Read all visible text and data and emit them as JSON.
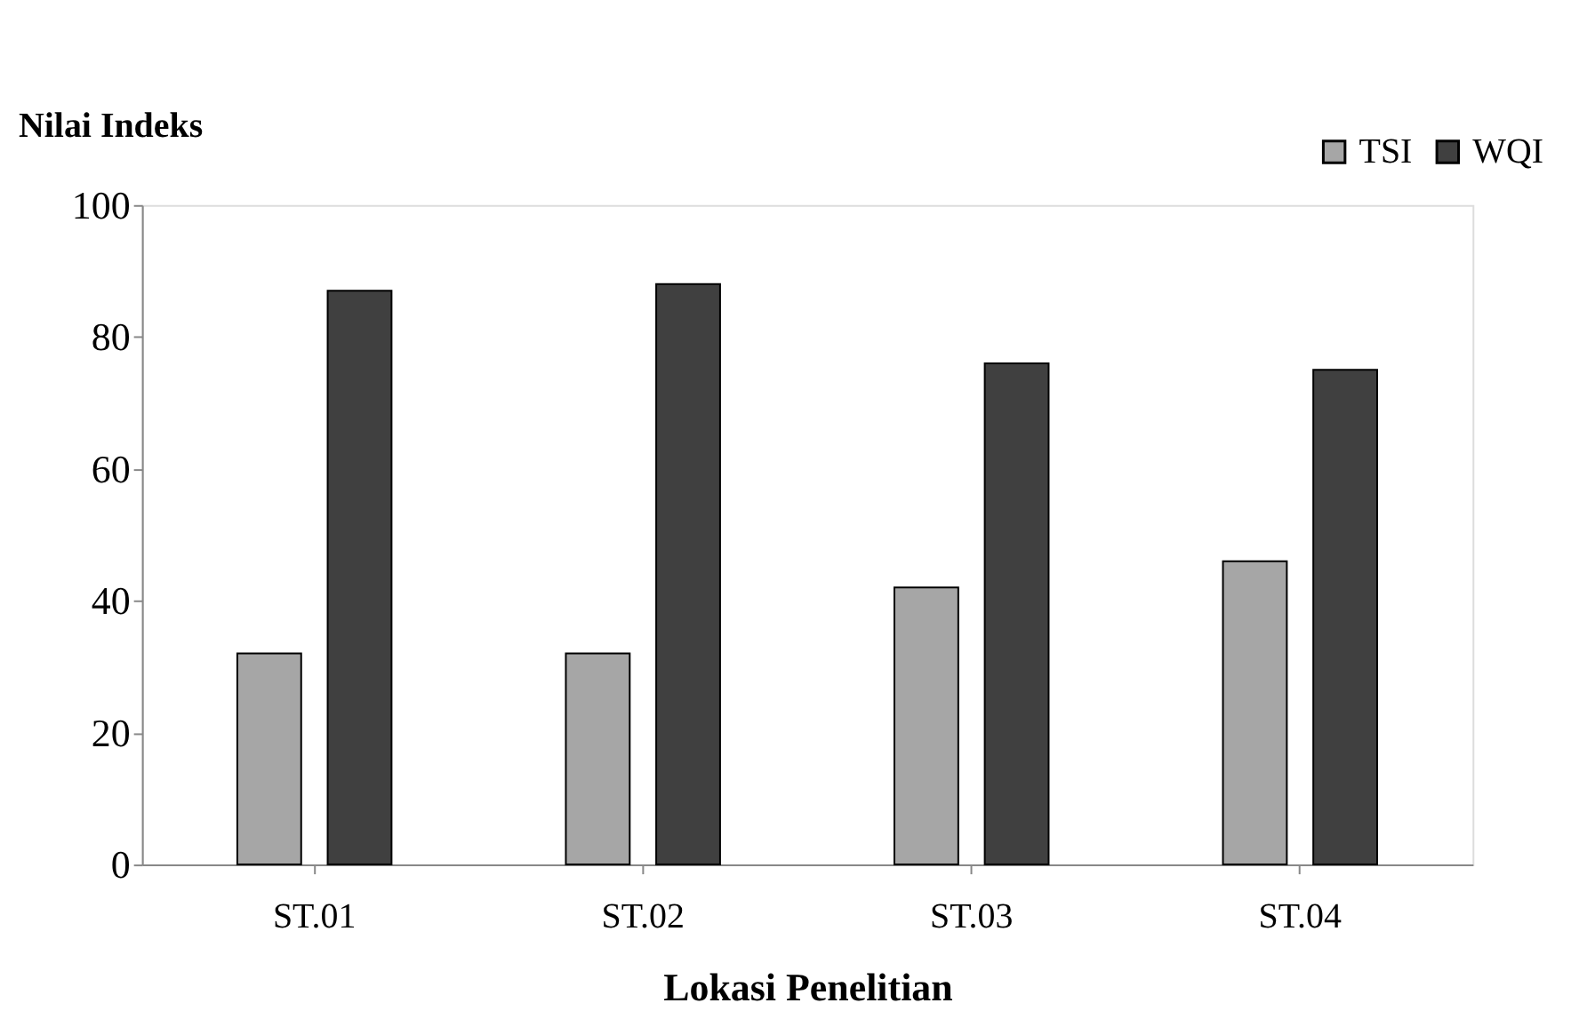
{
  "chart_data": {
    "type": "bar",
    "xlabel": "Lokasi Penelitian",
    "ylabel": "Nilai Indeks",
    "categories": [
      "ST.01",
      "ST.02",
      "ST.03",
      "ST.04"
    ],
    "series": [
      {
        "name": "TSI",
        "color": "#a6a6a6",
        "values": [
          32,
          32,
          42,
          46
        ]
      },
      {
        "name": "WQI",
        "color": "#404040",
        "values": [
          87,
          88,
          76,
          75
        ]
      }
    ],
    "ylim": [
      0,
      100
    ],
    "yticks": [
      0,
      20,
      40,
      60,
      80,
      100
    ],
    "grid": false,
    "legend": "top right"
  }
}
